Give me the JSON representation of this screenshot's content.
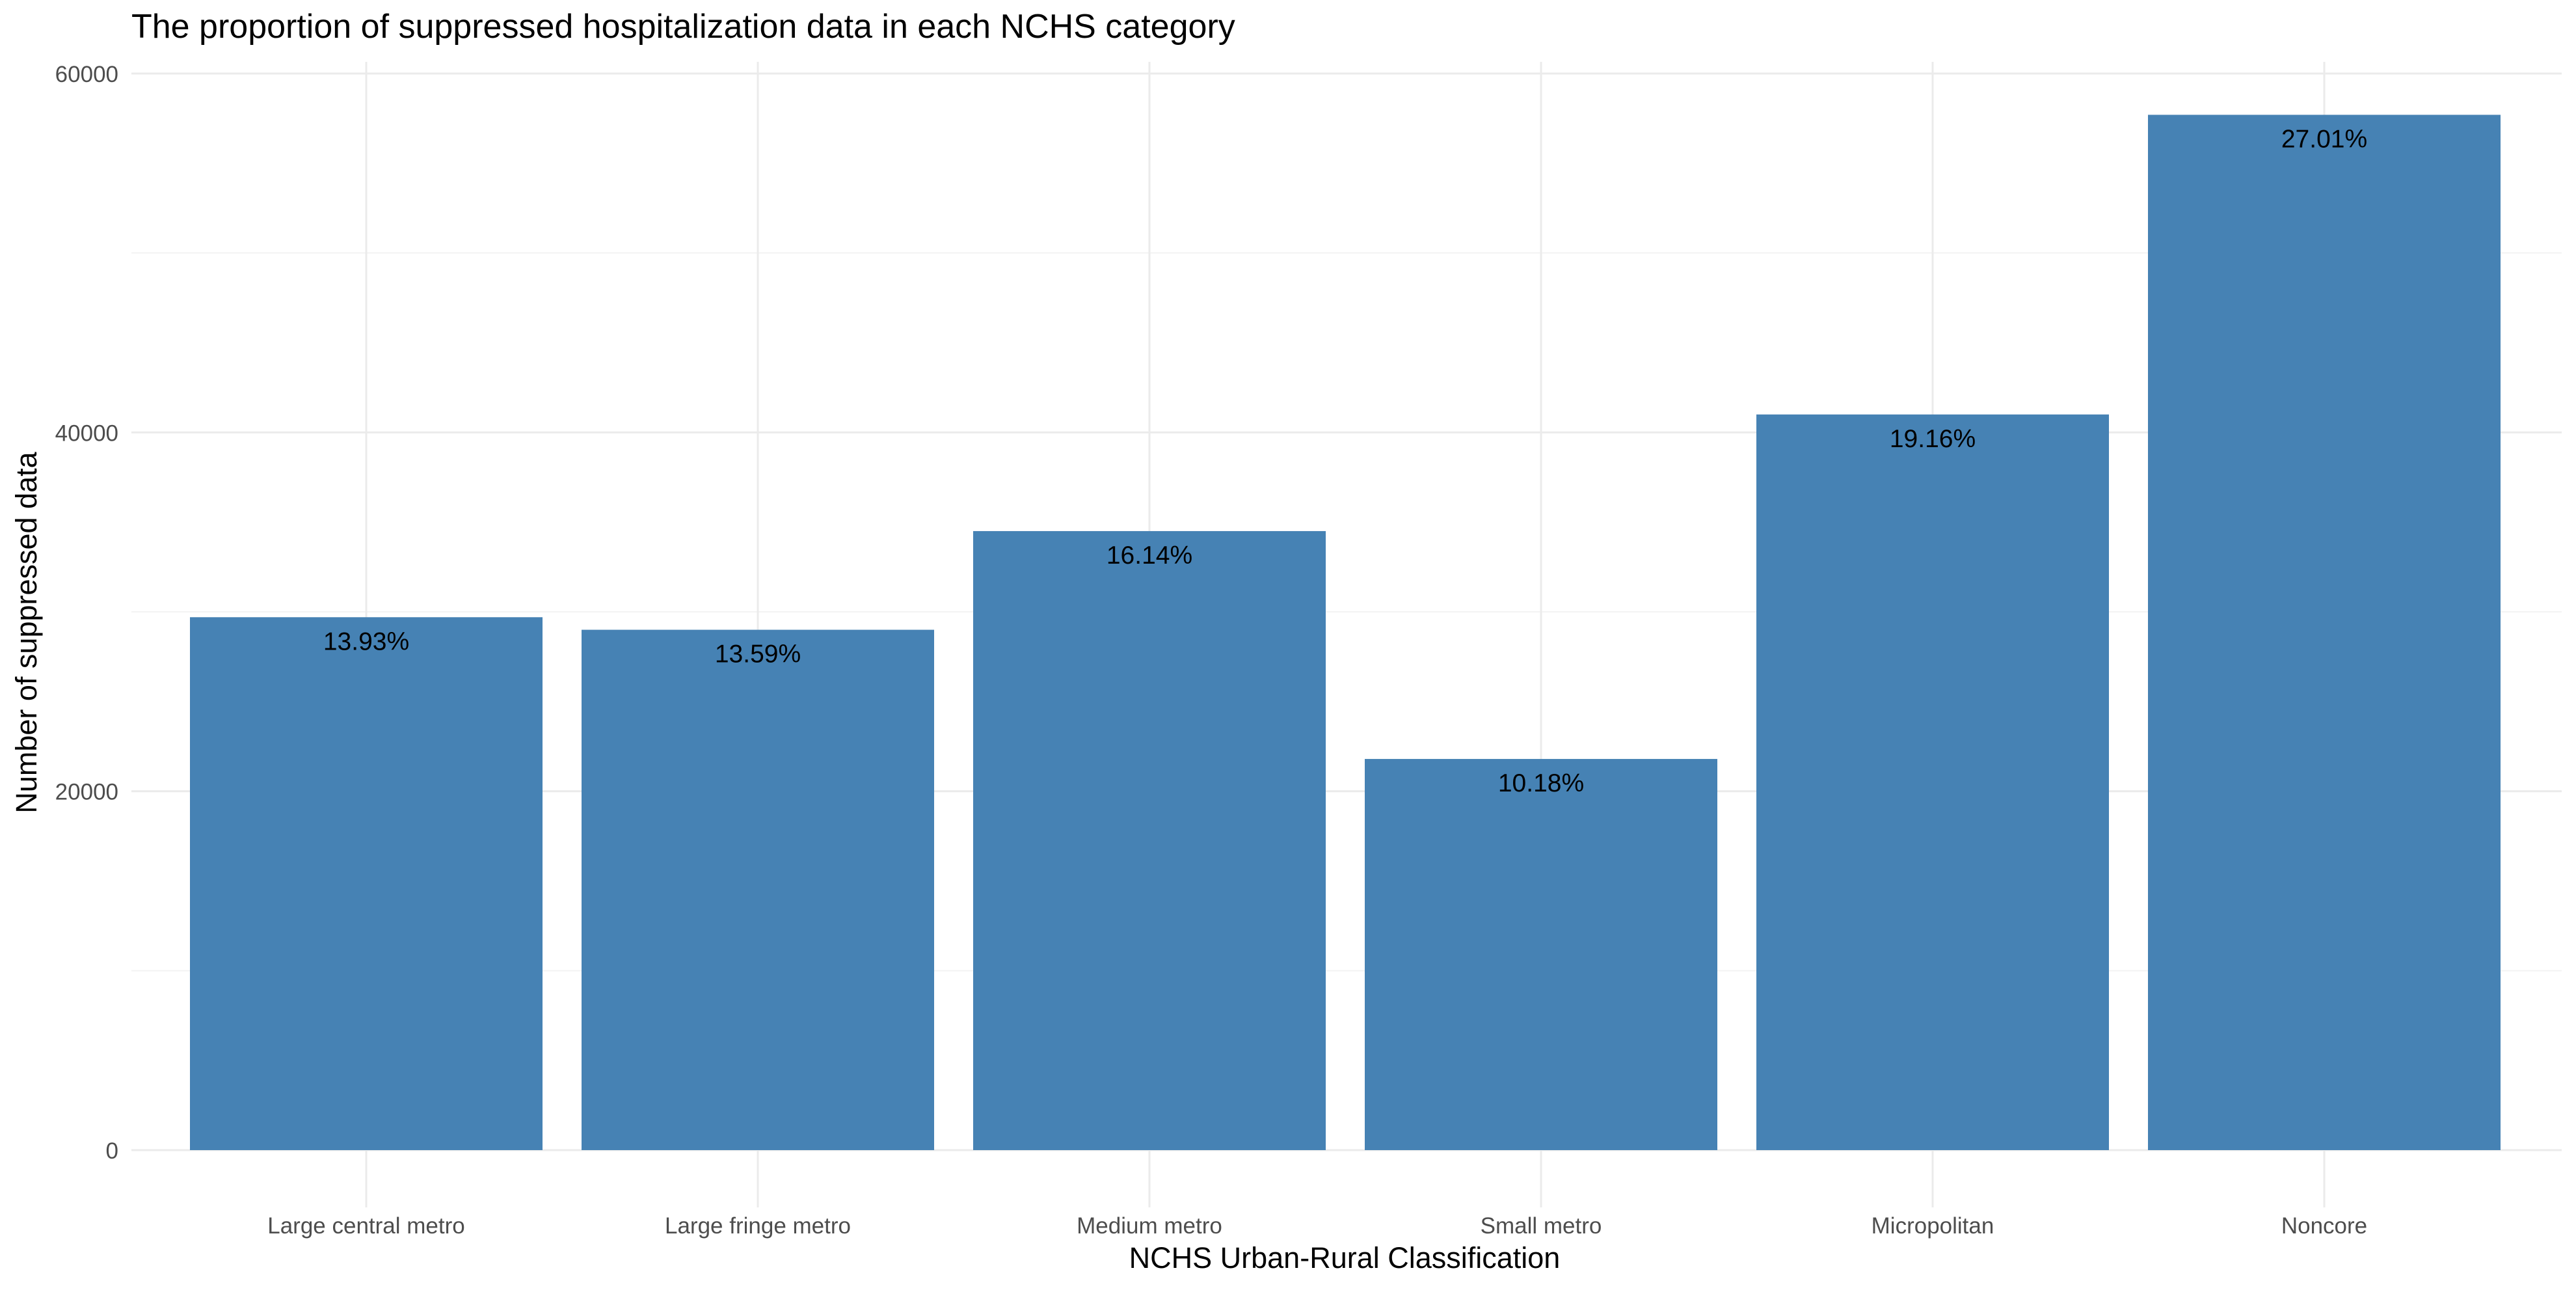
{
  "chart_data": {
    "type": "bar",
    "title": "The proportion of suppressed hospitalization data in each NCHS category",
    "xlabel": "NCHS Urban-Rural Classification",
    "ylabel": "Number of suppressed data",
    "categories": [
      "Large central metro",
      "Large fringe metro",
      "Medium metro",
      "Small metro",
      "Micropolitan",
      "Noncore"
    ],
    "values": [
      29700,
      29000,
      34500,
      21800,
      41000,
      57700
    ],
    "data_labels": [
      "13.93%",
      "13.59%",
      "16.14%",
      "10.18%",
      "19.16%",
      "27.01%"
    ],
    "ylim": [
      0,
      60000
    ],
    "yticks": [
      0,
      20000,
      40000,
      60000
    ],
    "ytick_labels": [
      "0",
      "20000",
      "40000",
      "60000"
    ],
    "grid": true,
    "legend": "none",
    "bar_color": "#4682B4",
    "grid_color": "#EBEBEB"
  }
}
